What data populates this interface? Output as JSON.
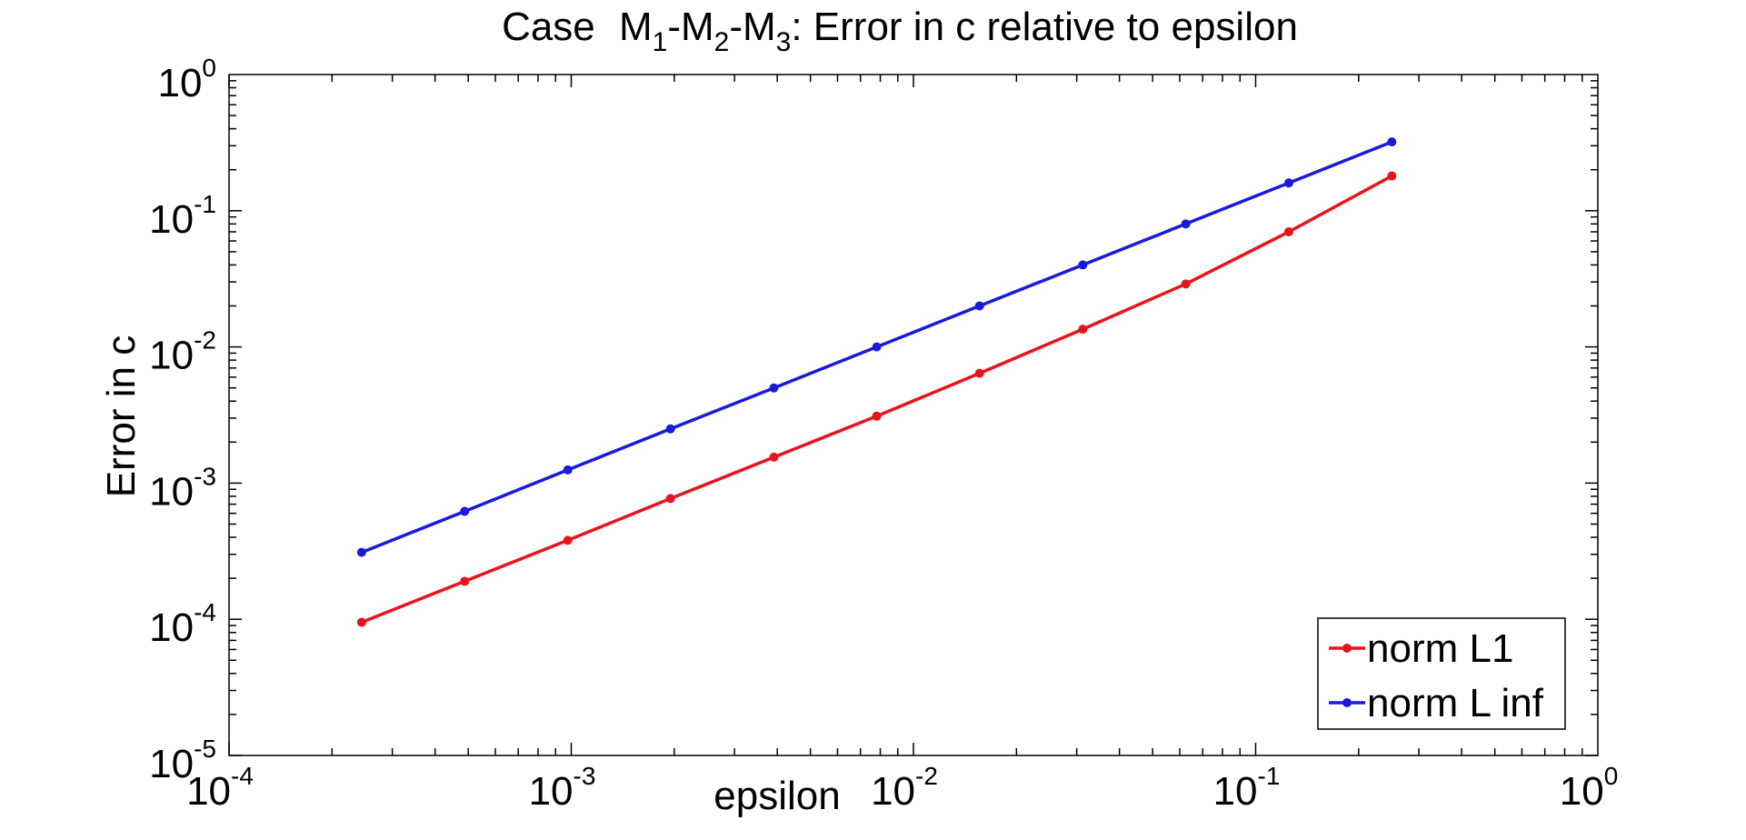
{
  "chart_data": {
    "type": "line",
    "title": {
      "prefix": "Case",
      "parts": [
        {
          "base": "M",
          "sub": "1"
        },
        {
          "base": "-M",
          "sub": "2"
        },
        {
          "base": "-M",
          "sub": "3"
        }
      ],
      "suffix": ": Error in c relative to epsilon"
    },
    "xlabel": "epsilon",
    "ylabel": "Error in c",
    "xscale": "log",
    "yscale": "log",
    "xlim": [
      0.0001,
      1
    ],
    "ylim": [
      1e-05,
      1
    ],
    "x_ticks": [
      {
        "base": "10",
        "exp": "-4"
      },
      {
        "base": "10",
        "exp": "-3"
      },
      {
        "base": "10",
        "exp": "-2"
      },
      {
        "base": "10",
        "exp": "-1"
      },
      {
        "base": "10",
        "exp": "0"
      }
    ],
    "y_ticks": [
      {
        "base": "10",
        "exp": "-5"
      },
      {
        "base": "10",
        "exp": "-4"
      },
      {
        "base": "10",
        "exp": "-3"
      },
      {
        "base": "10",
        "exp": "-2"
      },
      {
        "base": "10",
        "exp": "-1"
      },
      {
        "base": "10",
        "exp": "0"
      }
    ],
    "grid": false,
    "legend_position": "bottom-right",
    "x": [
      0.000244,
      0.000488,
      0.000977,
      0.00195,
      0.00391,
      0.00781,
      0.0156,
      0.03125,
      0.0625,
      0.125,
      0.25
    ],
    "series": [
      {
        "name": "norm L1",
        "color": "#e8141c",
        "values": [
          9.5e-05,
          0.00019,
          0.00038,
          0.00077,
          0.00155,
          0.0031,
          0.0064,
          0.0135,
          0.029,
          0.07,
          0.18
        ]
      },
      {
        "name": "norm L inf",
        "color": "#1a1adc",
        "values": [
          0.00031,
          0.00062,
          0.00125,
          0.0025,
          0.005,
          0.01,
          0.02,
          0.04,
          0.08,
          0.16,
          0.32
        ]
      }
    ]
  }
}
